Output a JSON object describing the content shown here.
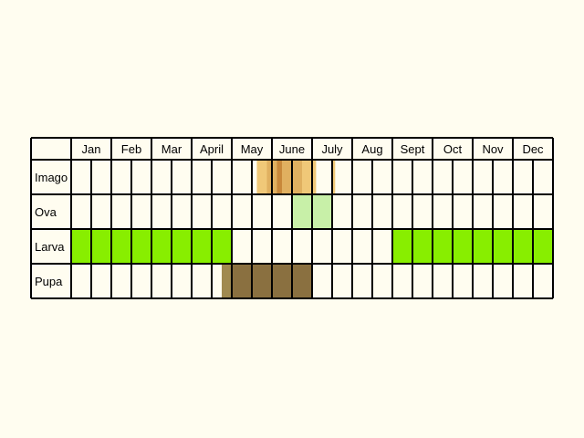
{
  "months": [
    "Jan",
    "Feb",
    "Mar",
    "April",
    "May",
    "June",
    "July",
    "Aug",
    "Sept",
    "Oct",
    "Nov",
    "Dec"
  ],
  "colors": {
    "background": "#fffdf0",
    "cell": "#fffdf0",
    "grid": "#000000",
    "imago_light": "#f0c878",
    "imago_mid": "#e0b060",
    "imago_dark": "#c8883a",
    "ova": "#c8f0a8",
    "larva": "#88ee00",
    "pupa": "#8a7040",
    "pupa_edge": "#a08a50"
  },
  "stages": [
    {
      "label": "Imago",
      "segments": [
        {
          "from": 9.25,
          "to": 9.75,
          "color": "imago_light"
        },
        {
          "from": 9.75,
          "to": 10.0,
          "color": "imago_mid"
        },
        {
          "from": 10.0,
          "to": 10.25,
          "color": "imago_mid"
        },
        {
          "from": 10.25,
          "to": 10.5,
          "color": "imago_dark"
        },
        {
          "from": 10.5,
          "to": 11.5,
          "color": "imago_mid"
        },
        {
          "from": 11.5,
          "to": 12.0,
          "color": "imago_light"
        },
        {
          "from": 12.0,
          "to": 12.2,
          "color": "imago_light"
        },
        {
          "from": 13.0,
          "to": 13.15,
          "color": "imago_light"
        }
      ]
    },
    {
      "label": "Ova",
      "segments": [
        {
          "from": 11.0,
          "to": 13.0,
          "color": "ova"
        }
      ]
    },
    {
      "label": "Larva",
      "segments": [
        {
          "from": 0,
          "to": 8.0,
          "color": "larva"
        },
        {
          "from": 16.0,
          "to": 24.0,
          "color": "larva"
        }
      ]
    },
    {
      "label": "Pupa",
      "segments": [
        {
          "from": 7.5,
          "to": 8.0,
          "color": "pupa_edge"
        },
        {
          "from": 8.0,
          "to": 12.0,
          "color": "pupa"
        }
      ]
    }
  ]
}
